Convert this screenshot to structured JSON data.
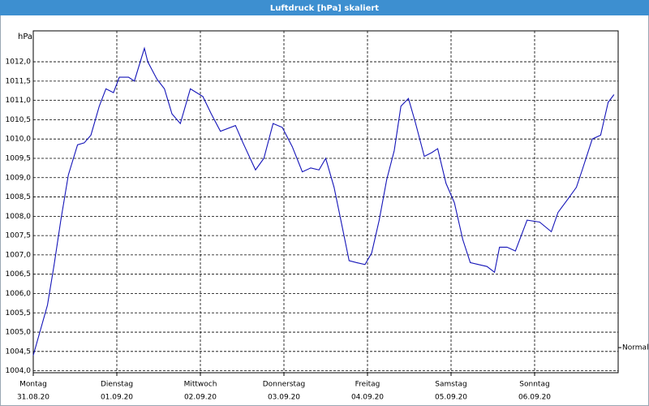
{
  "chart_data": {
    "type": "line",
    "title": "Luftdruck [hPa] skaliert",
    "y_unit": "hPa",
    "x": [
      0,
      0.17,
      0.25,
      0.33,
      0.42,
      0.53,
      0.61,
      0.69,
      0.79,
      0.87,
      0.96,
      1.03,
      1.14,
      1.21,
      1.33,
      1.37,
      1.48,
      1.57,
      1.66,
      1.76,
      1.88,
      2.03,
      2.13,
      2.24,
      2.42,
      2.51,
      2.66,
      2.76,
      2.87,
      2.98,
      3.1,
      3.22,
      3.32,
      3.42,
      3.5,
      3.6,
      3.7,
      3.78,
      3.87,
      3.97,
      4.05,
      4.14,
      4.23,
      4.32,
      4.4,
      4.49,
      4.57,
      4.68,
      4.77,
      4.84,
      4.94,
      5.04,
      5.14,
      5.23,
      5.33,
      5.43,
      5.52,
      5.58,
      5.67,
      5.77,
      5.91,
      6.06,
      6.2,
      6.28,
      6.4,
      6.5,
      6.57,
      6.69,
      6.79,
      6.88,
      6.95
    ],
    "series": [
      {
        "name": "Luftdruck",
        "color": "#1414b8",
        "values": [
          1004.4,
          1005.7,
          1006.75,
          1007.9,
          1009.07,
          1009.85,
          1009.9,
          1010.1,
          1010.85,
          1011.3,
          1011.2,
          1011.6,
          1011.6,
          1011.5,
          1012.35,
          1012.0,
          1011.55,
          1011.3,
          1010.65,
          1010.4,
          1011.3,
          1011.1,
          1010.65,
          1010.2,
          1010.35,
          1009.9,
          1009.2,
          1009.5,
          1010.4,
          1010.3,
          1009.8,
          1009.15,
          1009.25,
          1009.2,
          1009.5,
          1008.75,
          1007.7,
          1006.85,
          1006.8,
          1006.75,
          1007.05,
          1007.9,
          1008.95,
          1009.7,
          1010.85,
          1011.05,
          1010.45,
          1009.55,
          1009.65,
          1009.75,
          1008.85,
          1008.35,
          1007.4,
          1006.8,
          1006.75,
          1006.7,
          1006.55,
          1007.2,
          1007.2,
          1007.1,
          1007.9,
          1007.85,
          1007.6,
          1008.1,
          1008.45,
          1008.75,
          1009.2,
          1010.0,
          1010.1,
          1010.95,
          1011.15
        ]
      }
    ],
    "xlim": [
      0,
      7
    ],
    "xticks": [
      {
        "value": 0,
        "label": "Montag",
        "sublabel": "31.08.20"
      },
      {
        "value": 1,
        "label": "Dienstag",
        "sublabel": "01.09.20"
      },
      {
        "value": 2,
        "label": "Mittwoch",
        "sublabel": "02.09.20"
      },
      {
        "value": 3,
        "label": "Donnerstag",
        "sublabel": "03.09.20"
      },
      {
        "value": 4,
        "label": "Freitag",
        "sublabel": "04.09.20"
      },
      {
        "value": 5,
        "label": "Samstag",
        "sublabel": "05.09.20"
      },
      {
        "value": 6,
        "label": "Sonntag",
        "sublabel": "06.09.20"
      }
    ],
    "ylim": [
      1003.95,
      1012.8
    ],
    "yticks": [
      {
        "value": 1004.0,
        "label": "1004,0"
      },
      {
        "value": 1004.5,
        "label": "1004,5"
      },
      {
        "value": 1005.0,
        "label": "1005,0"
      },
      {
        "value": 1005.5,
        "label": "1005,5"
      },
      {
        "value": 1006.0,
        "label": "1006,0"
      },
      {
        "value": 1006.5,
        "label": "1006,5"
      },
      {
        "value": 1007.0,
        "label": "1007,0"
      },
      {
        "value": 1007.5,
        "label": "1007,5"
      },
      {
        "value": 1008.0,
        "label": "1008,0"
      },
      {
        "value": 1008.5,
        "label": "1008,5"
      },
      {
        "value": 1009.0,
        "label": "1009,0"
      },
      {
        "value": 1009.5,
        "label": "1009,5"
      },
      {
        "value": 1010.0,
        "label": "1010,0"
      },
      {
        "value": 1010.5,
        "label": "1010,5"
      },
      {
        "value": 1011.0,
        "label": "1011,0"
      },
      {
        "value": 1011.5,
        "label": "1011,5"
      },
      {
        "value": 1012.0,
        "label": "1012,0"
      }
    ],
    "grid": true,
    "reference": {
      "label": "Normal",
      "value": 1004.6
    }
  }
}
